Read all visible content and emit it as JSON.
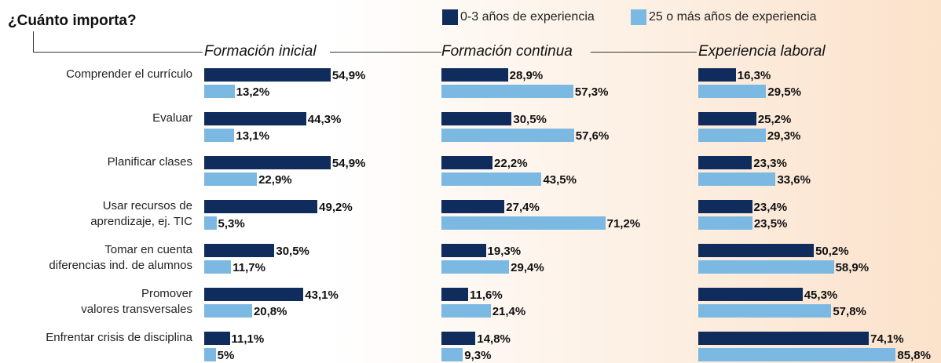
{
  "chart_data": {
    "type": "bar",
    "title": "¿Cuánto importa?",
    "series": [
      {
        "name": "0-3 años de experiencia",
        "color": "#102c5c"
      },
      {
        "name": "25 o más años de experiencia",
        "color": "#7cb9e2"
      }
    ],
    "categories": [
      "Comprender el currículo",
      "Evaluar",
      "Planificar clases",
      "Usar recursos de\naprendizaje, ej. TIC",
      "Tomar en cuenta\ndiferencias ind. de alumnos",
      "Promover\nvalores transversales",
      "Enfrentar crisis de disciplina"
    ],
    "panels": [
      {
        "title": "Formación inicial",
        "series": [
          {
            "values": [
              54.9,
              44.3,
              54.9,
              49.2,
              30.5,
              43.1,
              11.1
            ],
            "value_labels": [
              "54,9%",
              "44,3%",
              "54,9%",
              "49,2%",
              "30,5%",
              "43,1%",
              "11,1%"
            ]
          },
          {
            "values": [
              13.2,
              13.1,
              22.9,
              5.3,
              11.7,
              20.8,
              5
            ],
            "value_labels": [
              "13,2%",
              "13,1%",
              "22,9%",
              "5,3%",
              "11,7%",
              "20,8%",
              "5%"
            ]
          }
        ]
      },
      {
        "title": "Formación continua",
        "series": [
          {
            "values": [
              28.9,
              30.5,
              22.2,
              27.4,
              19.3,
              11.6,
              14.8
            ],
            "value_labels": [
              "28,9%",
              "30,5%",
              "22,2%",
              "27,4%",
              "19,3%",
              "11,6%",
              "14,8%"
            ]
          },
          {
            "values": [
              57.3,
              57.6,
              43.5,
              71.2,
              29.4,
              21.4,
              9.3
            ],
            "value_labels": [
              "57,3%",
              "57,6%",
              "43,5%",
              "71,2%",
              "29,4%",
              "21,4%",
              "9,3%"
            ]
          }
        ]
      },
      {
        "title": "Experiencia laboral",
        "series": [
          {
            "values": [
              16.3,
              25.2,
              23.3,
              23.4,
              50.2,
              45.3,
              74.1
            ],
            "value_labels": [
              "16,3%",
              "25,2%",
              "23,3%",
              "23,4%",
              "50,2%",
              "45,3%",
              "74,1%"
            ]
          },
          {
            "values": [
              29.5,
              29.3,
              33.6,
              23.5,
              58.9,
              57.8,
              85.8
            ],
            "value_labels": [
              "29,5%",
              "29,3%",
              "33,6%",
              "23,5%",
              "58,9%",
              "57,8%",
              "85,8%"
            ]
          }
        ]
      }
    ]
  }
}
